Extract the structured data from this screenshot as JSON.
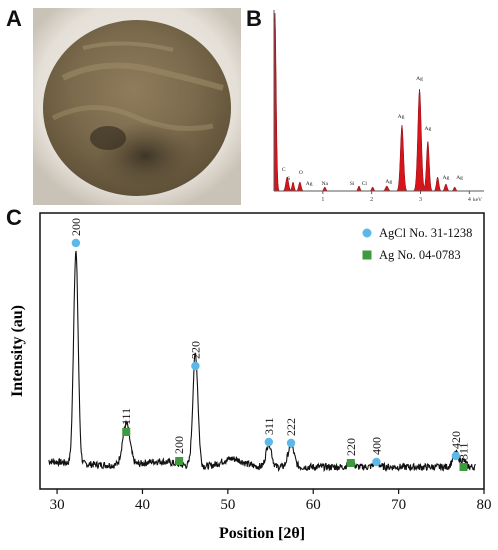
{
  "panels": {
    "a": "A",
    "b": "B",
    "c": "C"
  },
  "eds": {
    "x_ticks": [
      "1",
      "2",
      "3",
      "4"
    ],
    "x_unit": "keV",
    "peak_labels": [
      "C",
      "S",
      "O",
      "Ag",
      "Na",
      "Si",
      "Cl",
      "Ag",
      "Ag",
      "Ag",
      "Ag",
      "Ag",
      "Ag"
    ],
    "colors": {
      "fill": "#d6141c",
      "axis": "#5a5a5a"
    }
  },
  "chart_data": {
    "type": "line",
    "xlabel": "Position [2θ]",
    "ylabel": "Intensity (au)",
    "xlim": [
      28,
      80
    ],
    "x_ticks": [
      30,
      40,
      50,
      60,
      70,
      80
    ],
    "legend_position": "top-right",
    "legend": [
      {
        "name": "AgCl No. 31-1238",
        "marker": "circle",
        "color": "#5bb8e8"
      },
      {
        "name": "Ag No. 04-0783",
        "marker": "square",
        "color": "#3f9a3f"
      }
    ],
    "peaks": [
      {
        "x": 32.2,
        "label": "200",
        "phase": "AgCl"
      },
      {
        "x": 38.1,
        "label": "111",
        "phase": "Ag"
      },
      {
        "x": 44.3,
        "label": "200",
        "phase": "Ag"
      },
      {
        "x": 46.2,
        "label": "220",
        "phase": "AgCl"
      },
      {
        "x": 54.8,
        "label": "311",
        "phase": "AgCl"
      },
      {
        "x": 57.4,
        "label": "222",
        "phase": "AgCl"
      },
      {
        "x": 64.4,
        "label": "220",
        "phase": "Ag"
      },
      {
        "x": 67.4,
        "label": "400",
        "phase": "AgCl"
      },
      {
        "x": 76.7,
        "label": "420",
        "phase": "AgCl"
      },
      {
        "x": 77.6,
        "label": "311",
        "phase": "Ag"
      }
    ]
  }
}
